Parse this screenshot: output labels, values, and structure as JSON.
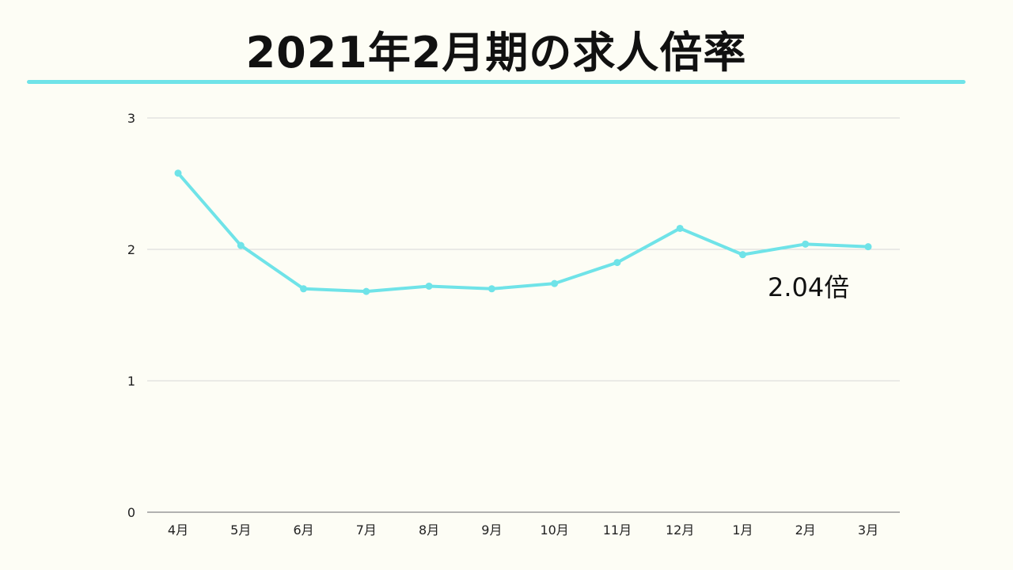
{
  "title": "2021年2月期の求人倍率",
  "colors": {
    "background": "#fdfdf5",
    "line": "#6fe3e8",
    "grid": "#d8d8d8",
    "axis": "#999999",
    "text": "#111111"
  },
  "callout": "2.04倍",
  "chart_data": {
    "type": "line",
    "title": "2021年2月期の求人倍率",
    "xlabel": "",
    "ylabel": "",
    "categories": [
      "4月",
      "5月",
      "6月",
      "7月",
      "8月",
      "9月",
      "10月",
      "11月",
      "12月",
      "1月",
      "2月",
      "3月"
    ],
    "series": [
      {
        "values": [
          2.58,
          2.03,
          1.7,
          1.68,
          1.72,
          1.7,
          1.74,
          1.9,
          2.16,
          1.96,
          2.04,
          2.02
        ]
      }
    ],
    "ylim": [
      0,
      3
    ],
    "yticks": [
      "0",
      "1",
      "2",
      "3"
    ],
    "grid": true,
    "legend": "none"
  }
}
